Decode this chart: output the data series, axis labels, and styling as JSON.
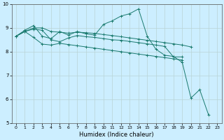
{
  "xlabel": "Humidex (Indice chaleur)",
  "background_color": "#cceeff",
  "grid_color": "#bbcccc",
  "line_color": "#1a7a6e",
  "xlim": [
    -0.5,
    23.5
  ],
  "ylim": [
    5,
    10
  ],
  "yticks": [
    5,
    6,
    7,
    8,
    9,
    10
  ],
  "xticks": [
    0,
    1,
    2,
    3,
    4,
    5,
    6,
    7,
    8,
    9,
    10,
    11,
    12,
    13,
    14,
    15,
    16,
    17,
    18,
    19,
    20,
    21,
    22,
    23
  ],
  "series": [
    {
      "x": [
        0,
        1,
        2,
        3,
        4,
        5,
        6,
        7,
        8,
        9,
        10,
        11,
        12,
        13,
        14,
        15,
        16,
        17,
        18,
        19,
        20,
        21,
        22
      ],
      "y": [
        8.65,
        8.9,
        9.1,
        8.65,
        8.55,
        8.85,
        8.7,
        8.85,
        8.75,
        8.7,
        9.15,
        9.3,
        9.5,
        9.6,
        9.8,
        8.65,
        8.1,
        7.85,
        7.8,
        7.55,
        6.05,
        6.4,
        5.35
      ]
    },
    {
      "x": [
        0,
        1,
        2,
        3,
        4,
        5,
        6,
        7,
        8,
        9,
        10,
        11,
        12,
        13,
        14,
        15,
        16,
        17,
        18,
        19,
        20
      ],
      "y": [
        8.65,
        8.85,
        9.0,
        9.0,
        8.85,
        8.82,
        8.78,
        8.82,
        8.8,
        8.77,
        8.72,
        8.68,
        8.63,
        8.58,
        8.53,
        8.48,
        8.43,
        8.38,
        8.33,
        8.28,
        8.2
      ]
    },
    {
      "x": [
        0,
        1,
        2,
        3,
        4,
        5,
        6,
        7,
        8,
        9,
        10,
        11,
        12,
        13,
        14,
        15,
        16,
        17,
        18,
        19
      ],
      "y": [
        8.65,
        8.85,
        8.95,
        8.9,
        8.5,
        8.42,
        8.58,
        8.68,
        8.63,
        8.6,
        8.55,
        8.5,
        8.48,
        8.43,
        8.38,
        8.33,
        8.28,
        8.22,
        7.78,
        7.78
      ]
    },
    {
      "x": [
        0,
        1,
        2,
        3,
        4,
        5,
        6,
        7,
        8,
        9,
        10,
        11,
        12,
        13,
        14,
        15,
        16,
        17,
        18,
        19
      ],
      "y": [
        8.65,
        8.85,
        8.6,
        8.32,
        8.28,
        8.35,
        8.3,
        8.25,
        8.2,
        8.15,
        8.1,
        8.05,
        8.0,
        7.95,
        7.9,
        7.85,
        7.8,
        7.75,
        7.7,
        7.65
      ]
    }
  ]
}
